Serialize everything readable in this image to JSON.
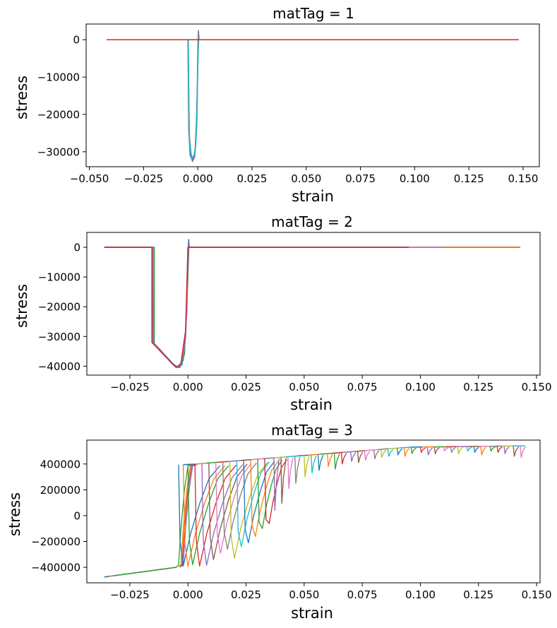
{
  "chart_data": [
    {
      "type": "line",
      "title": "matTag = 1",
      "xlabel": "strain",
      "ylabel": "stress",
      "xlim": [
        -0.0515,
        0.1575
      ],
      "ylim": [
        -34000,
        4200
      ],
      "xticks": [
        -0.05,
        -0.025,
        0.0,
        0.025,
        0.05,
        0.075,
        0.1,
        0.125,
        0.15
      ],
      "xtick_labels": [
        "−0.050",
        "−0.025",
        "0.000",
        "0.025",
        "0.050",
        "0.075",
        "0.100",
        "0.125",
        "0.150"
      ],
      "yticks": [
        0,
        -10000,
        -20000,
        -30000
      ],
      "ytick_labels": [
        "0",
        "−10000",
        "−20000",
        "−30000"
      ],
      "grid": false,
      "series": [
        {
          "color": "#1f77b4",
          "x": [
            -0.042,
            -0.0045,
            -0.004,
            -0.0035,
            -0.0025,
            -0.0015,
            -0.0008,
            -0.0003,
            0.0,
            0.0003,
            0.0005,
            0.148
          ],
          "y": [
            0,
            0,
            -26000,
            -31000,
            -32300,
            -31000,
            -27000,
            -15000,
            -2000,
            2200,
            0,
            0
          ]
        },
        {
          "color": "#9467bd",
          "x": [
            -0.042,
            -0.0045,
            -0.0042,
            -0.0035,
            -0.0025,
            -0.0015,
            -0.0008,
            -0.0002,
            0.0002,
            0.0004,
            0.148
          ],
          "y": [
            0,
            0,
            -24000,
            -30000,
            -32600,
            -31500,
            -26000,
            -12000,
            1500,
            0,
            0
          ]
        },
        {
          "color": "#8c564b",
          "x": [
            -0.042,
            -0.0044,
            -0.004,
            -0.003,
            -0.002,
            -0.0012,
            -0.0005,
            0.0001,
            0.0004,
            0.148
          ],
          "y": [
            0,
            0,
            -25000,
            -31500,
            -32000,
            -29000,
            -20000,
            -5000,
            0,
            0
          ]
        },
        {
          "color": "#7f7f7f",
          "x": [
            -0.042,
            -0.0046,
            -0.0041,
            -0.0032,
            -0.0022,
            -0.0012,
            -0.0004,
            0.0001,
            0.0003,
            0.0006,
            0.148
          ],
          "y": [
            0,
            0,
            -25500,
            -30500,
            -32200,
            -30000,
            -22000,
            -3000,
            2500,
            0,
            0
          ]
        },
        {
          "color": "#17becf",
          "x": [
            -0.042,
            -0.0045,
            -0.0038,
            -0.0028,
            -0.0018,
            -0.001,
            -0.0003,
            0.0002,
            0.148
          ],
          "y": [
            0,
            0,
            -27000,
            -31800,
            -31000,
            -28500,
            -17000,
            0,
            0
          ]
        },
        {
          "color": "#d62728",
          "x": [
            -0.042,
            0.07,
            0.148
          ],
          "y": [
            0,
            0,
            0
          ]
        }
      ]
    },
    {
      "type": "line",
      "title": "matTag = 2",
      "xlabel": "strain",
      "ylabel": "stress",
      "xlim": [
        -0.0435,
        0.1515
      ],
      "ylim": [
        -43000,
        5000
      ],
      "xticks": [
        -0.025,
        0.0,
        0.025,
        0.05,
        0.075,
        0.1,
        0.125,
        0.15
      ],
      "xtick_labels": [
        "−0.025",
        "0.000",
        "0.025",
        "0.050",
        "0.075",
        "0.100",
        "0.125",
        "0.150"
      ],
      "yticks": [
        0,
        -10000,
        -20000,
        -30000,
        -40000
      ],
      "ytick_labels": [
        "0",
        "−10000",
        "−20000",
        "−30000",
        "−40000"
      ],
      "grid": false,
      "series": [
        {
          "color": "#1f77b4",
          "x": [
            -0.036,
            -0.0155,
            -0.015,
            -0.012,
            -0.009,
            -0.006,
            -0.004,
            -0.002,
            -0.001,
            0.0,
            0.0003,
            0.0006,
            0.143
          ],
          "y": [
            0,
            0,
            -32000,
            -34500,
            -37000,
            -39500,
            -40500,
            -38000,
            -30000,
            -8000,
            2600,
            0,
            0
          ]
        },
        {
          "color": "#2ca02c",
          "x": [
            -0.036,
            -0.0145,
            -0.0145,
            -0.012,
            -0.009,
            -0.006,
            -0.0035,
            -0.0015,
            0.0,
            0.0004,
            0.143
          ],
          "y": [
            0,
            0,
            -32500,
            -34800,
            -37200,
            -39800,
            -40400,
            -36000,
            -10000,
            0,
            0
          ]
        },
        {
          "color": "#17becf",
          "x": [
            -0.036,
            -0.015,
            -0.0148,
            -0.011,
            -0.0075,
            -0.0045,
            -0.0025,
            -0.001,
            0.0,
            0.143
          ],
          "y": [
            0,
            0,
            -32200,
            -35500,
            -38500,
            -40200,
            -39500,
            -30000,
            0,
            0
          ]
        },
        {
          "color": "#9467bd",
          "x": [
            -0.036,
            -0.0152,
            -0.015,
            -0.012,
            -0.008,
            -0.005,
            -0.003,
            -0.0015,
            -0.0005,
            0.0002,
            0.0005,
            0.143
          ],
          "y": [
            0,
            0,
            -32000,
            -34400,
            -38000,
            -40300,
            -40000,
            -34000,
            -22000,
            1800,
            0,
            0
          ]
        },
        {
          "color": "#d62728",
          "x": [
            -0.036,
            -0.0155,
            -0.0155,
            -0.01,
            -0.007,
            -0.005,
            -0.003,
            -0.001,
            0.0,
            0.143
          ],
          "y": [
            0,
            0,
            -32000,
            -36500,
            -39000,
            -40500,
            -39000,
            -28000,
            0,
            0
          ]
        },
        {
          "color": "#e377c2",
          "x": [
            0.095,
            0.143
          ],
          "y": [
            0,
            0
          ]
        },
        {
          "color": "#ff7f0e",
          "x": [
            0.11,
            0.143
          ],
          "y": [
            0,
            0
          ]
        }
      ]
    },
    {
      "type": "line",
      "title": "matTag = 3",
      "xlabel": "strain",
      "ylabel": "stress",
      "xlim": [
        -0.0435,
        0.1515
      ],
      "ylim": [
        -520000,
        585000
      ],
      "xticks": [
        -0.025,
        0.0,
        0.025,
        0.05,
        0.075,
        0.1,
        0.125,
        0.15
      ],
      "xtick_labels": [
        "−0.025",
        "0.000",
        "0.025",
        "0.050",
        "0.075",
        "0.100",
        "0.125",
        "0.150"
      ],
      "yticks": [
        400000,
        200000,
        0,
        -200000,
        -400000
      ],
      "ytick_labels": [
        "400000",
        "200000",
        "0",
        "−200000",
        "−400000"
      ],
      "grid": false,
      "envelope": {
        "compression_branch": {
          "x": [
            -0.036,
            -0.005
          ],
          "y": [
            -475000,
            -400000
          ]
        },
        "yield_branch": {
          "x": [
            0.0,
            0.095,
            0.143
          ],
          "y": [
            395000,
            530000,
            540000
          ]
        }
      },
      "unloading_strains": [
        -0.004,
        -0.002,
        0.0,
        0.003,
        0.006,
        0.009,
        0.012,
        0.015,
        0.018,
        0.021,
        0.024,
        0.027,
        0.03,
        0.033,
        0.037,
        0.04,
        0.043,
        0.046,
        0.05,
        0.053,
        0.056,
        0.06,
        0.063,
        0.066,
        0.07,
        0.073,
        0.076,
        0.08,
        0.083,
        0.086,
        0.09,
        0.093,
        0.096,
        0.1,
        0.103,
        0.106,
        0.11,
        0.113,
        0.116,
        0.12,
        0.123,
        0.126,
        0.13,
        0.133,
        0.136,
        0.14,
        0.143
      ],
      "unloading_minima": [
        -390000,
        -395000,
        -380000,
        -390000,
        -385000,
        -340000,
        -290000,
        -260000,
        -330000,
        -240000,
        -210000,
        -160000,
        -100000,
        -60000,
        40000,
        95000,
        210000,
        250000,
        300000,
        330000,
        350000,
        380000,
        360000,
        400000,
        420000,
        410000,
        430000,
        440000,
        450000,
        460000,
        470000,
        460000,
        480000,
        490000,
        470000,
        480000,
        500000,
        490000,
        480000,
        500000,
        490000,
        470000,
        500000,
        490000,
        480000,
        460000,
        450000
      ],
      "series_colors": [
        "#1f77b4",
        "#ff7f0e",
        "#2ca02c",
        "#d62728",
        "#9467bd",
        "#8c564b",
        "#e377c2",
        "#7f7f7f",
        "#bcbd22",
        "#17becf"
      ]
    }
  ]
}
